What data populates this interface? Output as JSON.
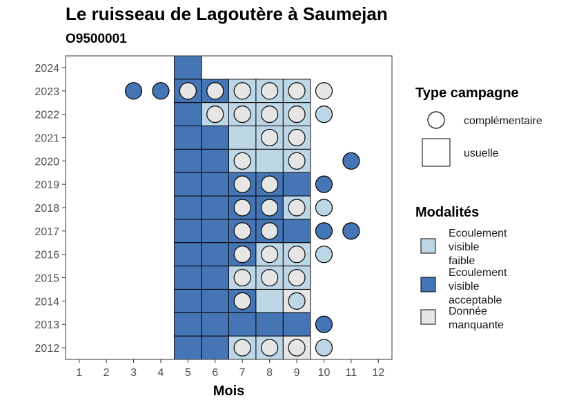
{
  "title": "Le ruisseau de Lagoutère à Saumejan",
  "subtitle": "O9500001",
  "colors": {
    "faible": "#bdd7e7",
    "acceptable": "#4575b4",
    "manquante": "#e6e6e6",
    "border": "#000000"
  },
  "legend": {
    "type_title": "Type campagne",
    "type_items": [
      {
        "label": "complémentaire",
        "shape": "circle"
      },
      {
        "label": "usuelle",
        "shape": "square"
      }
    ],
    "modal_title": "Modalités",
    "modal_items": [
      {
        "key": "faible",
        "lines": [
          "Ecoulement",
          "visible",
          "faible"
        ]
      },
      {
        "key": "acceptable",
        "lines": [
          "Ecoulement",
          "visible",
          "acceptable"
        ]
      },
      {
        "key": "manquante",
        "lines": [
          "Donnée",
          "manquante"
        ]
      }
    ]
  },
  "chart_data": {
    "type": "heatmap",
    "title": "Le ruisseau de Lagoutère à Saumejan",
    "subtitle": "O9500001",
    "xlabel": "Mois",
    "ylabel": "",
    "x_ticks": [
      1,
      2,
      3,
      4,
      5,
      6,
      7,
      8,
      9,
      10,
      11,
      12
    ],
    "y_ticks": [
      2012,
      2013,
      2014,
      2015,
      2016,
      2017,
      2018,
      2019,
      2020,
      2021,
      2022,
      2023,
      2024
    ],
    "xlim": [
      0.5,
      12.5
    ],
    "ylim": [
      2011.5,
      2024.5
    ],
    "grid": false,
    "squares": [
      {
        "year": 2024,
        "month": 5,
        "modalite": "acceptable"
      },
      {
        "year": 2023,
        "month": 5,
        "modalite": "acceptable"
      },
      {
        "year": 2023,
        "month": 6,
        "modalite": "acceptable"
      },
      {
        "year": 2023,
        "month": 7,
        "modalite": "faible"
      },
      {
        "year": 2023,
        "month": 8,
        "modalite": "faible"
      },
      {
        "year": 2023,
        "month": 9,
        "modalite": "faible"
      },
      {
        "year": 2022,
        "month": 5,
        "modalite": "acceptable"
      },
      {
        "year": 2022,
        "month": 6,
        "modalite": "faible"
      },
      {
        "year": 2022,
        "month": 7,
        "modalite": "faible"
      },
      {
        "year": 2022,
        "month": 8,
        "modalite": "faible"
      },
      {
        "year": 2022,
        "month": 9,
        "modalite": "faible"
      },
      {
        "year": 2021,
        "month": 5,
        "modalite": "acceptable"
      },
      {
        "year": 2021,
        "month": 6,
        "modalite": "acceptable"
      },
      {
        "year": 2021,
        "month": 7,
        "modalite": "faible"
      },
      {
        "year": 2021,
        "month": 8,
        "modalite": "faible"
      },
      {
        "year": 2021,
        "month": 9,
        "modalite": "faible"
      },
      {
        "year": 2020,
        "month": 5,
        "modalite": "acceptable"
      },
      {
        "year": 2020,
        "month": 6,
        "modalite": "acceptable"
      },
      {
        "year": 2020,
        "month": 7,
        "modalite": "faible"
      },
      {
        "year": 2020,
        "month": 8,
        "modalite": "faible"
      },
      {
        "year": 2020,
        "month": 9,
        "modalite": "faible"
      },
      {
        "year": 2019,
        "month": 5,
        "modalite": "acceptable"
      },
      {
        "year": 2019,
        "month": 6,
        "modalite": "acceptable"
      },
      {
        "year": 2019,
        "month": 7,
        "modalite": "acceptable"
      },
      {
        "year": 2019,
        "month": 8,
        "modalite": "acceptable"
      },
      {
        "year": 2019,
        "month": 9,
        "modalite": "acceptable"
      },
      {
        "year": 2018,
        "month": 5,
        "modalite": "acceptable"
      },
      {
        "year": 2018,
        "month": 6,
        "modalite": "acceptable"
      },
      {
        "year": 2018,
        "month": 7,
        "modalite": "acceptable"
      },
      {
        "year": 2018,
        "month": 8,
        "modalite": "acceptable"
      },
      {
        "year": 2018,
        "month": 9,
        "modalite": "faible"
      },
      {
        "year": 2017,
        "month": 5,
        "modalite": "acceptable"
      },
      {
        "year": 2017,
        "month": 6,
        "modalite": "acceptable"
      },
      {
        "year": 2017,
        "month": 7,
        "modalite": "acceptable"
      },
      {
        "year": 2017,
        "month": 8,
        "modalite": "acceptable"
      },
      {
        "year": 2017,
        "month": 9,
        "modalite": "acceptable"
      },
      {
        "year": 2016,
        "month": 5,
        "modalite": "acceptable"
      },
      {
        "year": 2016,
        "month": 6,
        "modalite": "acceptable"
      },
      {
        "year": 2016,
        "month": 7,
        "modalite": "acceptable"
      },
      {
        "year": 2016,
        "month": 8,
        "modalite": "faible"
      },
      {
        "year": 2016,
        "month": 9,
        "modalite": "faible"
      },
      {
        "year": 2015,
        "month": 5,
        "modalite": "acceptable"
      },
      {
        "year": 2015,
        "month": 6,
        "modalite": "acceptable"
      },
      {
        "year": 2015,
        "month": 7,
        "modalite": "faible"
      },
      {
        "year": 2015,
        "month": 8,
        "modalite": "faible"
      },
      {
        "year": 2015,
        "month": 9,
        "modalite": "faible"
      },
      {
        "year": 2014,
        "month": 5,
        "modalite": "acceptable"
      },
      {
        "year": 2014,
        "month": 6,
        "modalite": "acceptable"
      },
      {
        "year": 2014,
        "month": 7,
        "modalite": "acceptable"
      },
      {
        "year": 2014,
        "month": 8,
        "modalite": "faible"
      },
      {
        "year": 2014,
        "month": 9,
        "modalite": "manquante"
      },
      {
        "year": 2013,
        "month": 5,
        "modalite": "acceptable"
      },
      {
        "year": 2013,
        "month": 6,
        "modalite": "acceptable"
      },
      {
        "year": 2013,
        "month": 7,
        "modalite": "acceptable"
      },
      {
        "year": 2013,
        "month": 8,
        "modalite": "acceptable"
      },
      {
        "year": 2013,
        "month": 9,
        "modalite": "acceptable"
      },
      {
        "year": 2012,
        "month": 5,
        "modalite": "acceptable"
      },
      {
        "year": 2012,
        "month": 6,
        "modalite": "acceptable"
      },
      {
        "year": 2012,
        "month": 7,
        "modalite": "faible"
      },
      {
        "year": 2012,
        "month": 8,
        "modalite": "faible"
      },
      {
        "year": 2012,
        "month": 9,
        "modalite": "manquante"
      }
    ],
    "circles": [
      {
        "year": 2023,
        "month": 3,
        "modalite": "acceptable"
      },
      {
        "year": 2023,
        "month": 4,
        "modalite": "acceptable"
      },
      {
        "year": 2023,
        "month": 5,
        "modalite": "manquante"
      },
      {
        "year": 2023,
        "month": 6,
        "modalite": "manquante"
      },
      {
        "year": 2023,
        "month": 7,
        "modalite": "manquante"
      },
      {
        "year": 2023,
        "month": 8,
        "modalite": "manquante"
      },
      {
        "year": 2023,
        "month": 9,
        "modalite": "manquante"
      },
      {
        "year": 2023,
        "month": 10,
        "modalite": "manquante"
      },
      {
        "year": 2022,
        "month": 6,
        "modalite": "manquante"
      },
      {
        "year": 2022,
        "month": 7,
        "modalite": "manquante"
      },
      {
        "year": 2022,
        "month": 8,
        "modalite": "manquante"
      },
      {
        "year": 2022,
        "month": 9,
        "modalite": "manquante"
      },
      {
        "year": 2022,
        "month": 10,
        "modalite": "faible"
      },
      {
        "year": 2021,
        "month": 8,
        "modalite": "manquante"
      },
      {
        "year": 2021,
        "month": 9,
        "modalite": "manquante"
      },
      {
        "year": 2020,
        "month": 7,
        "modalite": "manquante"
      },
      {
        "year": 2020,
        "month": 9,
        "modalite": "manquante"
      },
      {
        "year": 2020,
        "month": 11,
        "modalite": "acceptable"
      },
      {
        "year": 2019,
        "month": 7,
        "modalite": "manquante"
      },
      {
        "year": 2019,
        "month": 8,
        "modalite": "manquante"
      },
      {
        "year": 2019,
        "month": 10,
        "modalite": "acceptable"
      },
      {
        "year": 2018,
        "month": 7,
        "modalite": "manquante"
      },
      {
        "year": 2018,
        "month": 8,
        "modalite": "manquante"
      },
      {
        "year": 2018,
        "month": 9,
        "modalite": "manquante"
      },
      {
        "year": 2018,
        "month": 10,
        "modalite": "faible"
      },
      {
        "year": 2017,
        "month": 7,
        "modalite": "manquante"
      },
      {
        "year": 2017,
        "month": 8,
        "modalite": "manquante"
      },
      {
        "year": 2017,
        "month": 10,
        "modalite": "acceptable"
      },
      {
        "year": 2017,
        "month": 11,
        "modalite": "acceptable"
      },
      {
        "year": 2016,
        "month": 7,
        "modalite": "manquante"
      },
      {
        "year": 2016,
        "month": 8,
        "modalite": "manquante"
      },
      {
        "year": 2016,
        "month": 9,
        "modalite": "manquante"
      },
      {
        "year": 2016,
        "month": 10,
        "modalite": "faible"
      },
      {
        "year": 2015,
        "month": 7,
        "modalite": "manquante"
      },
      {
        "year": 2015,
        "month": 8,
        "modalite": "manquante"
      },
      {
        "year": 2015,
        "month": 9,
        "modalite": "manquante"
      },
      {
        "year": 2014,
        "month": 7,
        "modalite": "manquante"
      },
      {
        "year": 2014,
        "month": 9,
        "modalite": "faible"
      },
      {
        "year": 2013,
        "month": 10,
        "modalite": "acceptable"
      },
      {
        "year": 2012,
        "month": 7,
        "modalite": "manquante"
      },
      {
        "year": 2012,
        "month": 8,
        "modalite": "manquante"
      },
      {
        "year": 2012,
        "month": 9,
        "modalite": "manquante"
      },
      {
        "year": 2012,
        "month": 10,
        "modalite": "faible"
      }
    ]
  }
}
